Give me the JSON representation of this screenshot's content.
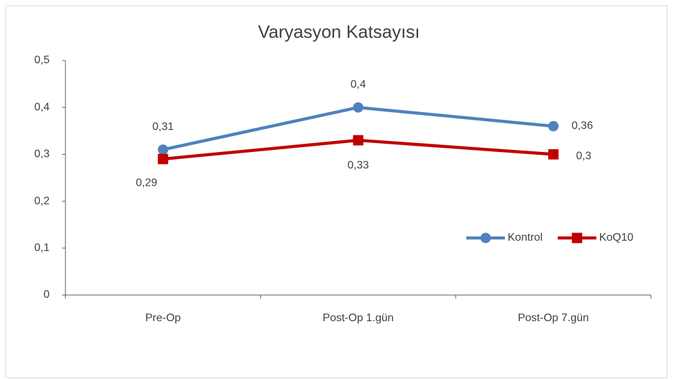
{
  "chart_data": {
    "type": "line",
    "title": "Varyasyon Katsayısı",
    "categories": [
      "Pre-Op",
      "Post-Op 1.gün",
      "Post-Op 7.gün"
    ],
    "series": [
      {
        "name": "Kontrol",
        "color": "#4f81bd",
        "marker": "circle",
        "values": [
          0.31,
          0.4,
          0.36
        ],
        "value_labels": [
          "0,31",
          "0,4",
          "0,36"
        ]
      },
      {
        "name": "KoQ10",
        "color": "#c00000",
        "marker": "square",
        "values": [
          0.29,
          0.33,
          0.3
        ],
        "value_labels": [
          "0,29",
          "0,33",
          "0,3"
        ]
      }
    ],
    "ylim": [
      0,
      0.5
    ],
    "yticks": [
      0,
      {
        "value": 0.1,
        "label": "0,1"
      },
      {
        "value": 0.2,
        "label": "0,2"
      },
      {
        "value": 0.3,
        "label": "0,3"
      },
      {
        "value": 0.4,
        "label": "0,4"
      },
      {
        "value": 0.5,
        "label": "0,5"
      }
    ],
    "grid": false,
    "legend": "right"
  }
}
